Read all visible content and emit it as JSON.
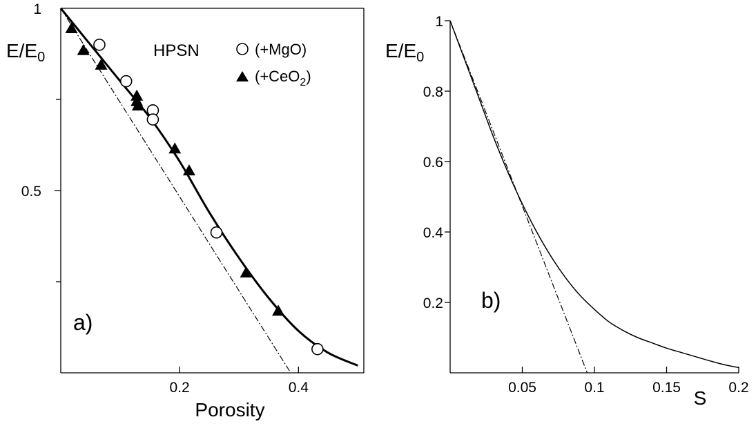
{
  "chart_data": [
    {
      "panel_label": "a)",
      "type": "scatter",
      "annotation": "HPSN",
      "xlabel": "Porosity",
      "ylabel_main": "E/E",
      "ylabel_sub": "0",
      "xlim": [
        0,
        0.51
      ],
      "ylim": [
        0,
        1
      ],
      "x_ticks": [
        {
          "value": 0.2,
          "label": "0.2"
        },
        {
          "value": 0.4,
          "label": "0.4"
        }
      ],
      "y_ticks": [
        {
          "value": 0.5,
          "label": "0.5"
        },
        {
          "value": 1,
          "label": "1"
        }
      ],
      "y_minor_ticks": [
        0.25,
        0.75
      ],
      "grid": false,
      "legend_position": "top-right",
      "legend": [
        {
          "label": "(+MgO)",
          "marker": "open-circle"
        },
        {
          "label_main": "(+CeO",
          "label_sub": "2",
          "label_tail": ")",
          "marker": "filled-triangle"
        }
      ],
      "series": [
        {
          "name": "(+MgO)",
          "marker": "open-circle",
          "points": [
            {
              "x": 0.065,
              "y": 0.9
            },
            {
              "x": 0.11,
              "y": 0.8
            },
            {
              "x": 0.155,
              "y": 0.72
            },
            {
              "x": 0.155,
              "y": 0.695
            },
            {
              "x": 0.262,
              "y": 0.385
            },
            {
              "x": 0.432,
              "y": 0.065
            }
          ]
        },
        {
          "name": "(+CeO2)",
          "marker": "filled-triangle",
          "points": [
            {
              "x": 0.018,
              "y": 0.945
            },
            {
              "x": 0.038,
              "y": 0.885
            },
            {
              "x": 0.068,
              "y": 0.845
            },
            {
              "x": 0.128,
              "y": 0.76
            },
            {
              "x": 0.128,
              "y": 0.745
            },
            {
              "x": 0.13,
              "y": 0.733
            },
            {
              "x": 0.192,
              "y": 0.615
            },
            {
              "x": 0.216,
              "y": 0.555
            },
            {
              "x": 0.312,
              "y": 0.275
            },
            {
              "x": 0.366,
              "y": 0.17
            }
          ]
        }
      ],
      "fit_curve": {
        "style": "solid",
        "x": [
          0,
          0.05,
          0.1,
          0.15,
          0.2,
          0.25,
          0.3,
          0.35,
          0.4,
          0.45,
          0.5
        ],
        "y": [
          1,
          0.9,
          0.8,
          0.7,
          0.58,
          0.44,
          0.315,
          0.205,
          0.115,
          0.055,
          0.02
        ]
      },
      "linear_line": {
        "style": "dash-dot",
        "x": [
          0,
          0.387
        ],
        "y": [
          1,
          0
        ]
      }
    },
    {
      "panel_label": "b)",
      "type": "line",
      "xlabel": "S",
      "ylabel_main": "E/E",
      "ylabel_sub": "0",
      "xlim": [
        0,
        0.2
      ],
      "ylim": [
        0,
        1
      ],
      "x_ticks": [
        {
          "value": 0.05,
          "label": "0.05"
        },
        {
          "value": 0.1,
          "label": "0.1"
        },
        {
          "value": 0.15,
          "label": "0.15"
        },
        {
          "value": 0.2,
          "label": "0.2"
        }
      ],
      "y_ticks": [
        {
          "value": 0.2,
          "label": "0.2"
        },
        {
          "value": 0.4,
          "label": "0.4"
        },
        {
          "value": 0.6,
          "label": "0.6"
        },
        {
          "value": 0.8,
          "label": "0.8"
        },
        {
          "value": 1,
          "label": "1"
        }
      ],
      "grid": false,
      "series": [
        {
          "style": "solid",
          "x": [
            0,
            0.01,
            0.02,
            0.03,
            0.04,
            0.05,
            0.06,
            0.07,
            0.08,
            0.09,
            0.1,
            0.11,
            0.12,
            0.13,
            0.14,
            0.15,
            0.16,
            0.17,
            0.18,
            0.19,
            0.2
          ],
          "y": [
            1,
            0.89,
            0.78,
            0.67,
            0.57,
            0.48,
            0.4,
            0.33,
            0.27,
            0.22,
            0.18,
            0.145,
            0.12,
            0.1,
            0.085,
            0.07,
            0.058,
            0.046,
            0.034,
            0.023,
            0.015
          ]
        },
        {
          "style": "dash-dot",
          "x": [
            0,
            0.095
          ],
          "y": [
            1,
            0
          ]
        }
      ]
    }
  ]
}
